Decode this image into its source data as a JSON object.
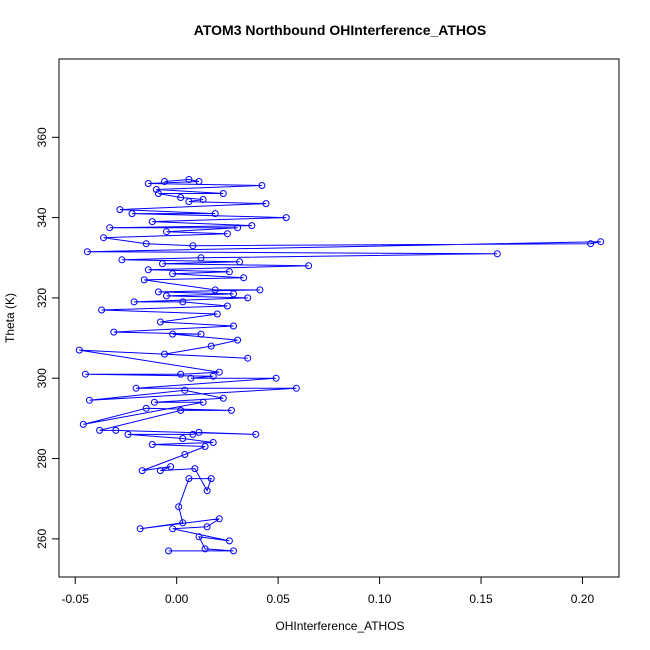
{
  "chart_data": {
    "type": "line",
    "title": "ATOM3 Northbound OHInterference_ATHOS",
    "xlabel": "OHInterference_ATHOS",
    "ylabel": "Theta (K)",
    "xlim": [
      -0.058,
      0.218
    ],
    "ylim": [
      250.5,
      379.5
    ],
    "x_ticks": [
      -0.05,
      0.0,
      0.05,
      0.1,
      0.15,
      0.2
    ],
    "x_tick_labels": [
      "-0.05",
      "0.00",
      "0.05",
      "0.10",
      "0.15",
      "0.20"
    ],
    "y_ticks": [
      260,
      280,
      300,
      320,
      340,
      360
    ],
    "y_tick_labels": [
      "260",
      "280",
      "300",
      "320",
      "340",
      "360"
    ],
    "grid": false,
    "legend": "none",
    "series": [
      {
        "color": "#0000ff",
        "marker": "open-circle",
        "x": [
          -0.004,
          0.028,
          0.014,
          0.011,
          0.026,
          -0.002,
          0.015,
          0.021,
          -0.018,
          0.003,
          0.001,
          0.006,
          0.017,
          0.015,
          0.009,
          -0.008,
          -0.003,
          -0.017,
          0.004,
          0.014,
          -0.012,
          0.018,
          0.003,
          -0.024,
          0.008,
          0.011,
          0.039,
          -0.03,
          -0.038,
          0.002,
          0.027,
          -0.015,
          -0.046,
          0.013,
          -0.011,
          0.023,
          0.004,
          -0.043,
          0.059,
          -0.02,
          0.049,
          0.007,
          0.018,
          -0.045,
          0.002,
          0.021,
          -0.048,
          0.035,
          -0.006,
          0.017,
          0.03,
          -0.002,
          0.012,
          -0.031,
          0.028,
          -0.008,
          0.02,
          -0.037,
          0.025,
          0.003,
          -0.021,
          0.035,
          -0.005,
          0.028,
          -0.009,
          0.041,
          0.019,
          -0.016,
          0.033,
          -0.002,
          0.026,
          -0.014,
          0.065,
          -0.007,
          0.031,
          -0.027,
          0.012,
          0.158,
          -0.044,
          0.209,
          0.204,
          0.008,
          -0.015,
          -0.036,
          0.025,
          -0.005,
          0.03,
          -0.033,
          0.037,
          -0.012,
          0.054,
          -0.022,
          0.019,
          -0.028,
          0.044,
          0.006,
          0.013,
          0.002,
          -0.009,
          0.023,
          -0.01,
          0.042,
          -0.014,
          0.011,
          0.006,
          -0.006
        ],
        "y": [
          257,
          257,
          257.5,
          260.5,
          259.5,
          262.5,
          263,
          265,
          262.5,
          264,
          268,
          275,
          275,
          272,
          277.5,
          277,
          278,
          277,
          281,
          283,
          283.5,
          284,
          285,
          286,
          286,
          286.5,
          286,
          287,
          287,
          292,
          292,
          292.5,
          288.5,
          294,
          294,
          295,
          297,
          294.5,
          297.5,
          297.5,
          300,
          300,
          300.5,
          301,
          301,
          301.5,
          307,
          305,
          306,
          308,
          309.5,
          311,
          311,
          311.5,
          313,
          314,
          316,
          317,
          318,
          319,
          319,
          320,
          320.5,
          321,
          321.5,
          322,
          322,
          324.5,
          325,
          326,
          326.5,
          327,
          328,
          328.5,
          329,
          329.5,
          330,
          331,
          331.5,
          334,
          333.5,
          333,
          333.5,
          335,
          336,
          336.5,
          337.5,
          337.5,
          338,
          339,
          340,
          341,
          341,
          342,
          343.5,
          344,
          344.5,
          345,
          346,
          346,
          347,
          348,
          348.5,
          349,
          349.5,
          349
        ]
      }
    ]
  }
}
